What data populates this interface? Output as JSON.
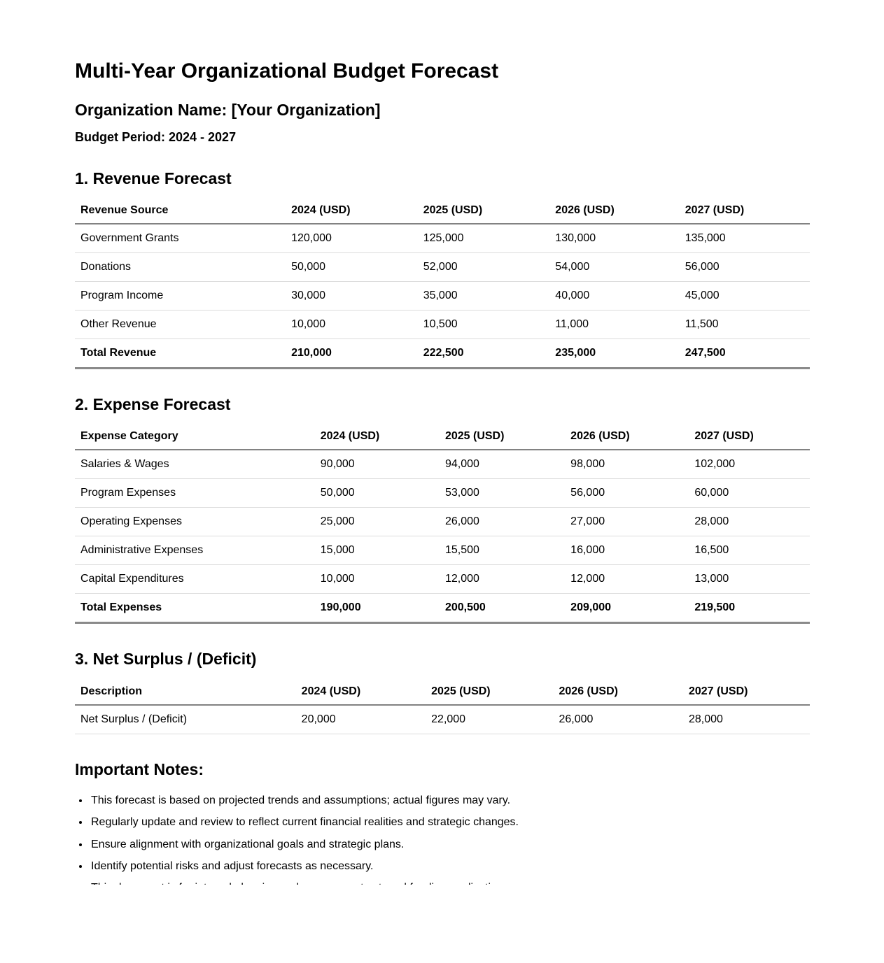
{
  "document": {
    "title": "Multi-Year Organizational Budget Forecast",
    "organization_line": "Organization Name: [Your Organization]",
    "budget_period_line": "Budget Period: 2024 - 2027"
  },
  "sections": [
    {
      "heading": "1. Revenue Forecast",
      "table": {
        "columns": [
          "Revenue Source",
          "2024 (USD)",
          "2025 (USD)",
          "2026 (USD)",
          "2027 (USD)"
        ],
        "rows": [
          {
            "label": "Government Grants",
            "values": [
              "120,000",
              "125,000",
              "130,000",
              "135,000"
            ],
            "total": false
          },
          {
            "label": "Donations",
            "values": [
              "50,000",
              "52,000",
              "54,000",
              "56,000"
            ],
            "total": false
          },
          {
            "label": "Program Income",
            "values": [
              "30,000",
              "35,000",
              "40,000",
              "45,000"
            ],
            "total": false
          },
          {
            "label": "Other Revenue",
            "values": [
              "10,000",
              "10,500",
              "11,000",
              "11,500"
            ],
            "total": false
          },
          {
            "label": "Total Revenue",
            "values": [
              "210,000",
              "222,500",
              "235,000",
              "247,500"
            ],
            "total": true
          }
        ]
      }
    },
    {
      "heading": "2. Expense Forecast",
      "table": {
        "columns": [
          "Expense Category",
          "2024 (USD)",
          "2025 (USD)",
          "2026 (USD)",
          "2027 (USD)"
        ],
        "rows": [
          {
            "label": "Salaries & Wages",
            "values": [
              "90,000",
              "94,000",
              "98,000",
              "102,000"
            ],
            "total": false
          },
          {
            "label": "Program Expenses",
            "values": [
              "50,000",
              "53,000",
              "56,000",
              "60,000"
            ],
            "total": false
          },
          {
            "label": "Operating Expenses",
            "values": [
              "25,000",
              "26,000",
              "27,000",
              "28,000"
            ],
            "total": false
          },
          {
            "label": "Administrative Expenses",
            "values": [
              "15,000",
              "15,500",
              "16,000",
              "16,500"
            ],
            "total": false
          },
          {
            "label": "Capital Expenditures",
            "values": [
              "10,000",
              "12,000",
              "12,000",
              "13,000"
            ],
            "total": false
          },
          {
            "label": "Total Expenses",
            "values": [
              "190,000",
              "200,500",
              "209,000",
              "219,500"
            ],
            "total": true
          }
        ]
      }
    },
    {
      "heading": "3. Net Surplus / (Deficit)",
      "table": {
        "columns": [
          "Description",
          "2024 (USD)",
          "2025 (USD)",
          "2026 (USD)",
          "2027 (USD)"
        ],
        "rows": [
          {
            "label": "Net Surplus / (Deficit)",
            "values": [
              "20,000",
              "22,000",
              "26,000",
              "28,000"
            ],
            "total": false
          }
        ]
      }
    }
  ],
  "notes": {
    "heading": "Important Notes:",
    "items": [
      "This forecast is based on projected trends and assumptions; actual figures may vary.",
      "Regularly update and review to reflect current financial realities and strategic changes.",
      "Ensure alignment with organizational goals and strategic plans.",
      "Identify potential risks and adjust forecasts as necessary.",
      "This document is for internal planning and may support external funding applications."
    ]
  }
}
